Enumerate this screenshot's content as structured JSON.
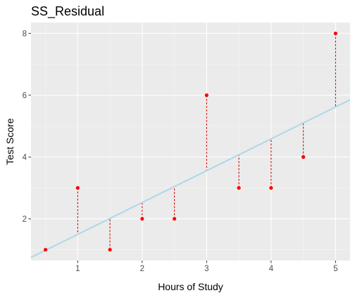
{
  "chart_data": {
    "type": "scatter",
    "title": "SS_Residual",
    "xlabel": "Hours of Study",
    "ylabel": "Test Score",
    "xlim": [
      0.275,
      5.225
    ],
    "ylim": [
      0.65,
      8.35
    ],
    "x_ticks": [
      1,
      2,
      3,
      4,
      5
    ],
    "y_ticks": [
      2,
      4,
      6,
      8
    ],
    "grid": true,
    "legend": "none",
    "points": [
      {
        "x": 0.5,
        "y": 1
      },
      {
        "x": 1.0,
        "y": 3
      },
      {
        "x": 1.5,
        "y": 1
      },
      {
        "x": 2.0,
        "y": 2
      },
      {
        "x": 2.5,
        "y": 2
      },
      {
        "x": 3.0,
        "y": 6
      },
      {
        "x": 3.5,
        "y": 3
      },
      {
        "x": 4.0,
        "y": 3
      },
      {
        "x": 4.5,
        "y": 4
      },
      {
        "x": 5.0,
        "y": 8
      }
    ],
    "fit_line": {
      "intercept": 0.4667,
      "slope": 1.0303
    },
    "colors": {
      "panel": "#ebebeb",
      "grid_major": "#ffffff",
      "grid_minor": "#f5f5f5",
      "points": "#ff0000",
      "residuals": "#cc0000",
      "fit_line": "#add8e6"
    }
  }
}
